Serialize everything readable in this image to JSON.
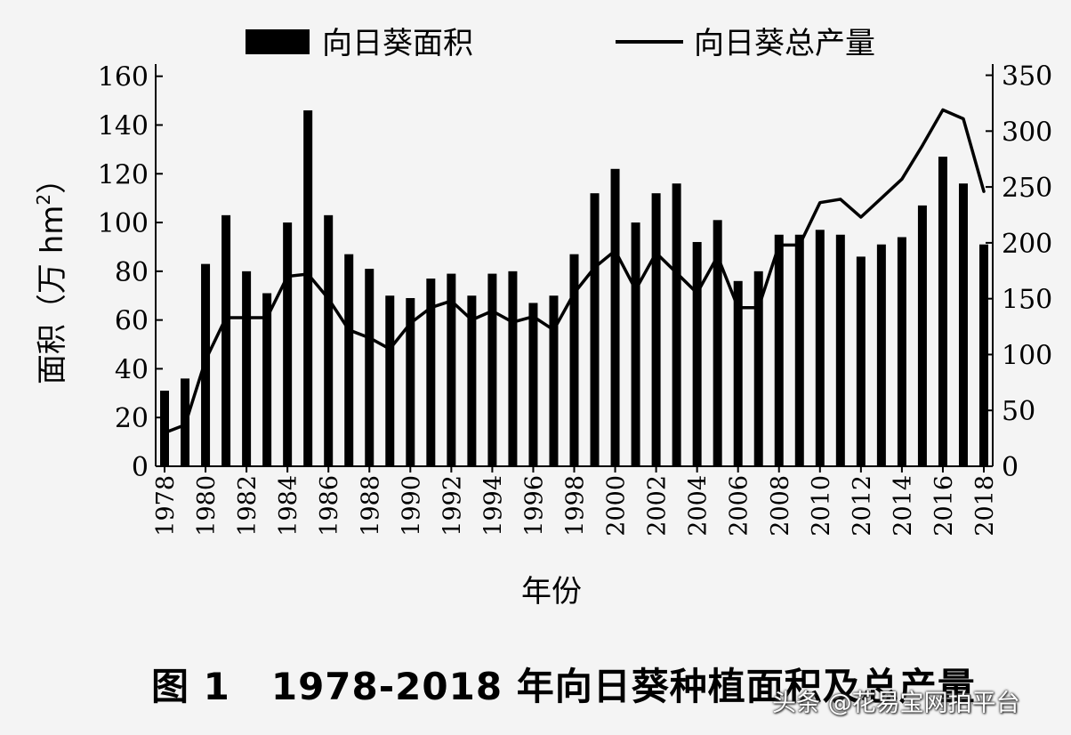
{
  "chart_data": {
    "type": "bar",
    "legend": {
      "placement": "top",
      "bar_label": "向日葵面积",
      "line_label": "向日葵总产量"
    },
    "xlabel": "年份",
    "ylabel_left_main": "面积（万 hm",
    "ylabel_left_sup": "2",
    "ylabel_left_close": "）",
    "ylim_left": [
      0,
      165
    ],
    "ylim_right": [
      0,
      360
    ],
    "left_ticks": [
      "0",
      "20",
      "40",
      "60",
      "80",
      "100",
      "120",
      "140",
      "160"
    ],
    "right_ticks": [
      "0",
      "50",
      "100",
      "150",
      "200",
      "250",
      "300",
      "350"
    ],
    "x_tick_labels": [
      "1978",
      "1980",
      "1982",
      "1984",
      "1986",
      "1988",
      "1990",
      "1992",
      "1994",
      "1996",
      "1998",
      "2000",
      "2002",
      "2004",
      "2006",
      "2008",
      "2010",
      "2012",
      "2014",
      "2016",
      "2018"
    ],
    "years": [
      1978,
      1979,
      1980,
      1981,
      1982,
      1983,
      1984,
      1985,
      1986,
      1987,
      1988,
      1989,
      1990,
      1991,
      1992,
      1993,
      1994,
      1995,
      1996,
      1997,
      1998,
      1999,
      2000,
      2001,
      2002,
      2003,
      2004,
      2005,
      2006,
      2007,
      2008,
      2009,
      2010,
      2011,
      2012,
      2013,
      2014,
      2015,
      2016,
      2017,
      2018
    ],
    "series": [
      {
        "name": "向日葵面积",
        "type": "bar",
        "axis": "left",
        "values": [
          31,
          36,
          83,
          103,
          80,
          71,
          100,
          146,
          103,
          87,
          81,
          70,
          69,
          77,
          79,
          70,
          79,
          80,
          67,
          70,
          87,
          112,
          122,
          100,
          112,
          116,
          92,
          101,
          76,
          80,
          95,
          95,
          97,
          95,
          86,
          91,
          94,
          107,
          127,
          116,
          91
        ]
      },
      {
        "name": "向日葵总产量",
        "type": "line",
        "axis": "right",
        "values": [
          30,
          37,
          95,
          133,
          133,
          133,
          170,
          172,
          150,
          122,
          115,
          105,
          128,
          142,
          148,
          131,
          139,
          129,
          134,
          122,
          155,
          178,
          193,
          158,
          191,
          173,
          155,
          188,
          142,
          142,
          198,
          198,
          236,
          239,
          223,
          240,
          257,
          287,
          319,
          311,
          246
        ]
      }
    ]
  },
  "caption": {
    "figure_no": "图 1",
    "text": "1978-2018 年向日葵种植面积及总产量"
  },
  "watermark": "头条 @花易宝网拍平台"
}
